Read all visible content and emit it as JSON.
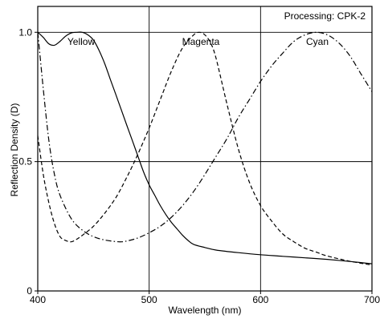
{
  "chart_data": {
    "type": "line",
    "annotation": "Processing: CPK-2",
    "xlabel": "Wavelength (nm)",
    "ylabel": "Reflection Density (D)",
    "xlim": [
      400,
      700
    ],
    "ylim": [
      0,
      1.1
    ],
    "x_ticks": [
      400,
      500,
      600,
      700
    ],
    "x_tick_labels": [
      "400",
      "500",
      "600",
      "700"
    ],
    "y_ticks": [
      0,
      0.5,
      1.0
    ],
    "y_tick_labels": [
      "0",
      "0.5",
      "1.0"
    ],
    "grid": true,
    "series": [
      {
        "name": "Yellow",
        "line_style": "solid",
        "x": [
          400,
          405,
          410,
          415,
          420,
          425,
          430,
          435,
          440,
          445,
          450,
          455,
          460,
          465,
          470,
          475,
          480,
          485,
          490,
          495,
          500,
          505,
          510,
          515,
          520,
          525,
          530,
          535,
          540,
          550,
          560,
          580,
          600,
          620,
          640,
          660,
          680,
          700
        ],
        "y": [
          1.0,
          0.98,
          0.955,
          0.95,
          0.965,
          0.985,
          0.997,
          1.0,
          1.0,
          0.99,
          0.97,
          0.93,
          0.88,
          0.82,
          0.76,
          0.7,
          0.64,
          0.58,
          0.52,
          0.46,
          0.41,
          0.37,
          0.33,
          0.295,
          0.265,
          0.24,
          0.215,
          0.195,
          0.18,
          0.168,
          0.158,
          0.148,
          0.14,
          0.134,
          0.128,
          0.122,
          0.114,
          0.105
        ]
      },
      {
        "name": "Magenta",
        "line_style": "dashed",
        "x": [
          400,
          405,
          410,
          415,
          420,
          425,
          430,
          435,
          440,
          450,
          460,
          470,
          480,
          490,
          500,
          510,
          520,
          530,
          540,
          545,
          550,
          555,
          560,
          570,
          580,
          590,
          600,
          610,
          620,
          630,
          640,
          650,
          660,
          680,
          700
        ],
        "y": [
          0.6,
          0.45,
          0.34,
          0.26,
          0.21,
          0.195,
          0.19,
          0.2,
          0.215,
          0.25,
          0.3,
          0.36,
          0.44,
          0.53,
          0.63,
          0.74,
          0.85,
          0.94,
          0.99,
          1.0,
          0.99,
          0.96,
          0.9,
          0.72,
          0.55,
          0.42,
          0.33,
          0.27,
          0.22,
          0.19,
          0.165,
          0.15,
          0.135,
          0.115,
          0.1
        ]
      },
      {
        "name": "Cyan",
        "line_style": "dash-dot",
        "x": [
          400,
          405,
          410,
          415,
          420,
          430,
          440,
          450,
          460,
          470,
          475,
          480,
          490,
          500,
          510,
          520,
          530,
          540,
          550,
          560,
          570,
          580,
          590,
          600,
          610,
          620,
          630,
          640,
          650,
          660,
          670,
          680,
          690,
          700
        ],
        "y": [
          1.0,
          0.78,
          0.58,
          0.45,
          0.37,
          0.28,
          0.235,
          0.21,
          0.197,
          0.191,
          0.19,
          0.193,
          0.205,
          0.225,
          0.25,
          0.285,
          0.33,
          0.385,
          0.45,
          0.52,
          0.59,
          0.67,
          0.74,
          0.81,
          0.87,
          0.92,
          0.965,
          0.99,
          1.0,
          0.99,
          0.96,
          0.91,
          0.84,
          0.77
        ]
      }
    ]
  }
}
